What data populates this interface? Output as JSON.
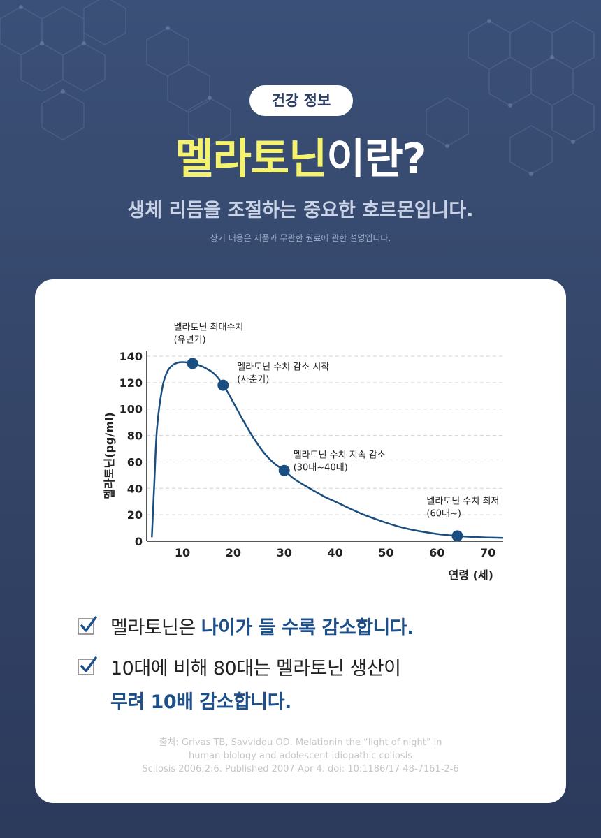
{
  "header": {
    "badge": "건강 정보",
    "title_highlight": "멜라토닌",
    "title_rest": "이란?",
    "subtitle": "생체 리듬을 조절하는 중요한 호르몬입니다.",
    "note": "상기 내용은 제품과 무관한 원료에 관한 설명입니다."
  },
  "colors": {
    "background": "#334466",
    "title_highlight": "#f5f26e",
    "curve": "#1a4e80",
    "emphasis": "#1d4f8a"
  },
  "chart_data": {
    "type": "line",
    "xlabel": "연령 (세)",
    "ylabel": "멜라토닌(pg/ml)",
    "xlim": [
      3,
      73
    ],
    "ylim": [
      0,
      140
    ],
    "x_ticks": [
      "10",
      "20",
      "30",
      "40",
      "50",
      "60",
      "70"
    ],
    "x_tick_values": [
      10,
      20,
      30,
      40,
      50,
      60,
      70
    ],
    "y_ticks": [
      "0",
      "20",
      "40",
      "60",
      "80",
      "100",
      "120",
      "140"
    ],
    "y_tick_values": [
      0,
      20,
      40,
      60,
      80,
      100,
      120,
      140
    ],
    "grid": "horizontal dashed",
    "series": [
      {
        "x": [
          4,
          4.5,
          5,
          6,
          7,
          8,
          9,
          10,
          11,
          12,
          13,
          14,
          15,
          16,
          17,
          18,
          19,
          20,
          22,
          24,
          26,
          28,
          30,
          32,
          35,
          38,
          40,
          43,
          46,
          50,
          53,
          56,
          60,
          64,
          67,
          70,
          73
        ],
        "values": [
          3,
          45,
          85,
          115,
          128,
          133,
          135,
          135.5,
          135.2,
          134.5,
          133.5,
          132,
          130,
          127.5,
          123.5,
          118,
          112,
          105,
          91,
          78,
          67,
          59,
          53.5,
          47,
          40,
          33.5,
          30,
          24.5,
          19.5,
          14,
          10.5,
          8,
          5.5,
          4,
          3.2,
          2.8,
          2.5
        ]
      }
    ],
    "highlight_points": [
      {
        "x": 12,
        "y": 134.5,
        "label_line1": "멜라토닌 최대수치",
        "label_line2": "(유년기)"
      },
      {
        "x": 18,
        "y": 118,
        "label_line1": "멜라토닌 수치 감소 시작",
        "label_line2": "(사춘기)"
      },
      {
        "x": 30,
        "y": 53.5,
        "label_line1": "멜라토닌 수치 지속 감소",
        "label_line2": "(30대~40대)"
      },
      {
        "x": 64,
        "y": 4,
        "label_line1": "멜라토닌 수치 최저",
        "label_line2": "(60대~)"
      }
    ]
  },
  "checklist": [
    {
      "icon": "checkbox-check-icon",
      "normal": "멜라토닌은 ",
      "emphasis": "나이가 들 수록 감소합니다."
    },
    {
      "icon": "checkbox-check-icon",
      "normal": "10대에 비해 80대는 멜라토닌 생산이",
      "emphasis": "무려 10배 감소합니다."
    }
  ],
  "source": {
    "line1": "출처: Grivas TB, Savvidou OD. Melationin the “light of night” in",
    "line2": "human biology and adolescent idiopathic coliosis",
    "line3": "Scliosis 2006;2:6. Published 2007 Apr 4. doi: 10:1186/17 48-7161-2-6"
  }
}
